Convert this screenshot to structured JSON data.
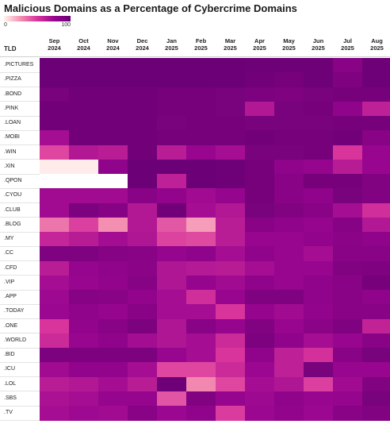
{
  "chart_data": {
    "type": "heatmap",
    "title": "Malicious Domains as a Percentage of Cybercrime Domains",
    "legend": {
      "min_label": "0",
      "max_label": "100",
      "colors": [
        "#fff4ef",
        "#f48fb1",
        "#d8349c",
        "#98058f",
        "#690074"
      ]
    },
    "row_header": "TLD",
    "columns": [
      [
        "Sep",
        "2024"
      ],
      [
        "Oct",
        "2024"
      ],
      [
        "Nov",
        "2024"
      ],
      [
        "Dec",
        "2024"
      ],
      [
        "Jan",
        "2025"
      ],
      [
        "Feb",
        "2025"
      ],
      [
        "Mar",
        "2025"
      ],
      [
        "Apr",
        "2025"
      ],
      [
        "May",
        "2025"
      ],
      [
        "Jun",
        "2025"
      ],
      [
        "Jul",
        "2025"
      ],
      [
        "Aug",
        "2025"
      ]
    ],
    "rows": [
      ".PICTURES",
      ".PIZZA",
      ".BOND",
      ".PINK",
      ".LOAN",
      ".MOBI",
      ".WIN",
      ".XIN",
      ".QPON",
      ".CYOU",
      ".CLUB",
      ".BLOG",
      ".MY",
      ".CC",
      ".CFD",
      ".VIP",
      ".APP",
      ".TODAY",
      ".ONE",
      ".WORLD",
      ".BID",
      ".ICU",
      ".LOL",
      ".SBS",
      ".TV"
    ],
    "values": [
      [
        99,
        99,
        99,
        99,
        99,
        99,
        99,
        98,
        98,
        98,
        90,
        98
      ],
      [
        99,
        99,
        99,
        99,
        99,
        99,
        99,
        97,
        96,
        98,
        93,
        98
      ],
      [
        95,
        97,
        97,
        97,
        96,
        96,
        95,
        94,
        93,
        95,
        96,
        96
      ],
      [
        97,
        97,
        97,
        97,
        96,
        96,
        95,
        75,
        95,
        96,
        88,
        70
      ],
      [
        97,
        97,
        97,
        97,
        95,
        96,
        96,
        95,
        95,
        95,
        96,
        96
      ],
      [
        80,
        97,
        97,
        97,
        96,
        96,
        96,
        97,
        96,
        96,
        97,
        90
      ],
      [
        55,
        75,
        72,
        97,
        72,
        85,
        80,
        95,
        95,
        96,
        60,
        85
      ],
      [
        3,
        3,
        88,
        99,
        99,
        99,
        98,
        96,
        88,
        86,
        73,
        85
      ],
      [
        null,
        null,
        null,
        99,
        70,
        99,
        98,
        96,
        90,
        96,
        96,
        92
      ],
      [
        82,
        82,
        82,
        90,
        87,
        82,
        86,
        96,
        90,
        88,
        95,
        92
      ],
      [
        82,
        94,
        91,
        75,
        97,
        80,
        75,
        95,
        92,
        90,
        80,
        63
      ],
      [
        42,
        57,
        35,
        75,
        50,
        30,
        72,
        90,
        88,
        86,
        91,
        75
      ],
      [
        68,
        73,
        81,
        76,
        56,
        54,
        72,
        85,
        85,
        87,
        89,
        88
      ],
      [
        93,
        93,
        91,
        90,
        86,
        88,
        80,
        88,
        85,
        80,
        90,
        90
      ],
      [
        72,
        86,
        88,
        89,
        76,
        74,
        73,
        80,
        85,
        85,
        92,
        93
      ],
      [
        80,
        85,
        87,
        91,
        76,
        86,
        82,
        88,
        85,
        88,
        90,
        96
      ],
      [
        83,
        91,
        90,
        87,
        80,
        63,
        85,
        93,
        93,
        88,
        90,
        88
      ],
      [
        84,
        88,
        86,
        90,
        80,
        80,
        60,
        86,
        82,
        87,
        90,
        90
      ],
      [
        60,
        87,
        90,
        94,
        76,
        90,
        86,
        92,
        85,
        89,
        93,
        69
      ],
      [
        65,
        85,
        88,
        81,
        76,
        80,
        65,
        94,
        88,
        80,
        85,
        90
      ],
      [
        94,
        94,
        94,
        94,
        85,
        80,
        60,
        88,
        70,
        62,
        90,
        95
      ],
      [
        82,
        87,
        87,
        80,
        55,
        55,
        65,
        84,
        70,
        95,
        85,
        85
      ],
      [
        72,
        75,
        80,
        72,
        98,
        37,
        55,
        80,
        76,
        57,
        82,
        92
      ],
      [
        78,
        80,
        86,
        86,
        51,
        92,
        86,
        83,
        88,
        85,
        86,
        95
      ],
      [
        80,
        83,
        82,
        90,
        84,
        88,
        58,
        84,
        87,
        84,
        90,
        92
      ]
    ]
  }
}
